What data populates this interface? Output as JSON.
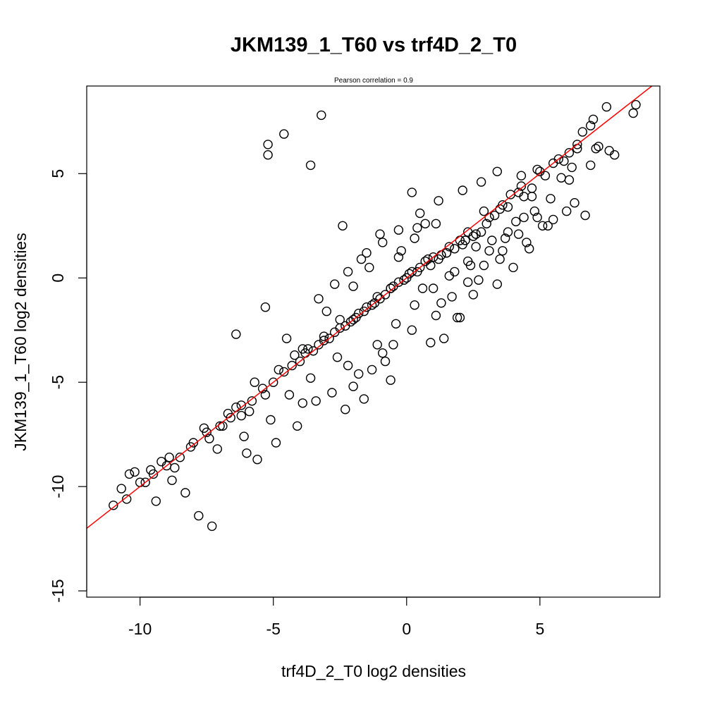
{
  "chart_data": {
    "type": "scatter",
    "title": "JKM139_1_T60 vs trf4D_2_T0",
    "subtitle": "Pearson correlation =  0.9",
    "xlabel": "trf4D_2_T0 log2 densities",
    "ylabel": "JKM139_1_T60 log2 densities",
    "xlim": [
      -12,
      9.5
    ],
    "ylim": [
      -15.3,
      9.2
    ],
    "xticks": [
      -10,
      -5,
      0,
      5
    ],
    "yticks": [
      -15,
      -10,
      -5,
      0,
      5
    ],
    "xtick_labels": [
      "-10",
      "-5",
      "0",
      "5"
    ],
    "ytick_labels": [
      "-15",
      "-10",
      "-5",
      "0",
      "5"
    ],
    "grid": false,
    "legend": "none",
    "fit_line": {
      "intercept": 0.0,
      "slope": 1.0,
      "color": "#ff0000"
    },
    "point_color": "#000000",
    "points": {
      "x": [
        8.6,
        8.5,
        7.5,
        7.8,
        7.2,
        7.1,
        6.9,
        7.0,
        6.6,
        6.4,
        6.1,
        6.2,
        5.9,
        5.8,
        5.5,
        5.2,
        4.9,
        4.7,
        4.4,
        4.2,
        4.3,
        3.9,
        3.8,
        3.5,
        3.3,
        3.1,
        3.0,
        2.8,
        2.6,
        2.5,
        2.3,
        2.1,
        2.0,
        1.8,
        1.6,
        1.5,
        1.3,
        1.2,
        1.0,
        0.9,
        0.7,
        0.5,
        0.4,
        0.2,
        0.0,
        -0.1,
        -0.3,
        -0.5,
        -0.6,
        -0.8,
        -1.0,
        -1.1,
        -1.3,
        -1.5,
        -1.6,
        -1.8,
        -2.0,
        -2.1,
        -2.3,
        -2.5,
        -2.7,
        -2.9,
        -3.1,
        -3.3,
        -3.5,
        -3.8,
        -4.0,
        -4.3,
        -4.6,
        -5.0,
        -5.4,
        -5.8,
        -6.2,
        -6.6,
        -7.0,
        -7.5,
        -8.0,
        -8.5,
        -9.0,
        -9.5,
        -10.0,
        -10.5,
        -11.0,
        -10.7,
        -10.2,
        -9.8,
        -9.2,
        -8.7,
        -8.1,
        -7.6,
        -6.9,
        -6.4,
        -5.9,
        -5.3,
        -4.8,
        -4.2,
        -3.7,
        -3.1,
        -2.5,
        -1.9,
        -1.2,
        -0.6,
        0.1,
        0.8,
        1.5,
        2.2,
        2.9,
        3.6,
        4.3,
        5.0,
        5.7,
        6.4,
        -3.2,
        -4.6,
        -5.2,
        -5.2,
        -3.6,
        -6.4,
        -5.3,
        -4.5,
        -3.9,
        -3.0,
        -2.0,
        -1.4,
        0.3,
        0.7,
        1.6,
        2.3,
        2.6,
        3.2,
        3.8,
        4.4,
        4.7,
        -2.2,
        -1.8,
        -0.9,
        -0.6,
        0.9,
        1.4,
        1.9,
        2.5,
        3.4,
        4.0,
        4.6,
        5.1,
        5.5,
        6.0,
        6.7,
        0.2,
        0.4,
        -0.3,
        -2.4,
        -1.5,
        -1.0,
        -0.2,
        1.1,
        2.7,
        -7.3,
        -7.8,
        -8.3,
        -9.4,
        -8.8,
        -7.1,
        -6.0,
        -5.6,
        -4.9,
        -4.1,
        -3.4,
        -2.8,
        -6.7,
        -6.2,
        -5.7,
        -4.4,
        -3.6,
        -2.6,
        -1.1,
        -0.4,
        0.3,
        1.0,
        1.8,
        2.4,
        3.1,
        3.7,
        4.1,
        4.8,
        5.4,
        6.1,
        6.9,
        7.6,
        -9.6,
        -10.4,
        -8.9,
        -7.4,
        -6.1,
        -5.1,
        -3.9,
        -2.3,
        -1.6,
        -0.8,
        0.6,
        1.3,
        2.0,
        3.5,
        4.5,
        5.3,
        6.3,
        -2.0,
        -1.3,
        -0.5,
        0.2,
        1.1,
        1.7,
        2.3,
        2.9,
        3.6,
        4.2,
        4.9,
        -3.3,
        -2.7,
        -2.2,
        -1.7,
        -0.9,
        -0.3,
        0.5,
        1.2,
        2.1,
        2.8,
        3.4
      ],
      "y": [
        8.3,
        7.9,
        8.2,
        5.9,
        6.3,
        6.2,
        7.3,
        7.6,
        7.0,
        6.4,
        6.0,
        5.3,
        5.6,
        4.8,
        5.5,
        4.9,
        5.2,
        4.3,
        3.9,
        4.1,
        4.9,
        4.0,
        3.4,
        3.3,
        3.0,
        2.9,
        2.6,
        2.2,
        2.1,
        2.0,
        2.2,
        1.6,
        1.8,
        1.4,
        1.5,
        1.2,
        1.1,
        0.9,
        1.0,
        0.6,
        0.8,
        0.5,
        0.3,
        0.3,
        0.0,
        -0.1,
        -0.2,
        -0.4,
        -0.5,
        -0.8,
        -1.0,
        -0.9,
        -1.3,
        -1.4,
        -1.6,
        -1.7,
        -2.0,
        -2.1,
        -2.3,
        -2.4,
        -2.6,
        -2.9,
        -3.0,
        -3.2,
        -3.5,
        -3.6,
        -4.0,
        -4.2,
        -4.5,
        -5.0,
        -5.3,
        -5.9,
        -6.1,
        -6.7,
        -7.1,
        -7.4,
        -7.9,
        -8.6,
        -9.0,
        -9.4,
        -9.8,
        -10.6,
        -10.9,
        -10.1,
        -9.3,
        -9.8,
        -8.8,
        -9.1,
        -8.1,
        -7.2,
        -7.1,
        -6.2,
        -6.4,
        -5.6,
        -4.4,
        -3.7,
        -3.4,
        -2.8,
        -2.0,
        -1.9,
        -1.2,
        -0.5,
        0.2,
        0.9,
        1.2,
        1.8,
        3.2,
        3.5,
        4.4,
        5.1,
        5.7,
        6.2,
        7.8,
        6.9,
        6.4,
        5.9,
        5.4,
        -2.7,
        -1.4,
        -2.9,
        -3.4,
        -1.6,
        -0.4,
        0.5,
        1.9,
        2.6,
        0.1,
        0.8,
        1.5,
        1.8,
        2.2,
        2.9,
        3.9,
        -4.2,
        -4.6,
        -3.6,
        -4.9,
        -3.1,
        -2.9,
        -1.9,
        -0.8,
        -0.3,
        0.5,
        1.4,
        2.5,
        2.8,
        3.2,
        3.0,
        4.1,
        2.4,
        1.0,
        2.5,
        1.2,
        2.1,
        1.3,
        2.6,
        -0.1,
        -11.9,
        -11.4,
        -10.3,
        -10.7,
        -9.7,
        -8.2,
        -8.4,
        -8.7,
        -7.9,
        -7.1,
        -5.9,
        -5.5,
        -6.5,
        -6.6,
        -5.0,
        -5.6,
        -4.8,
        -3.8,
        -3.2,
        -2.2,
        -1.3,
        -0.5,
        0.3,
        0.6,
        1.3,
        1.9,
        2.7,
        3.2,
        3.8,
        4.7,
        5.4,
        6.1,
        -9.2,
        -9.4,
        -8.6,
        -7.7,
        -7.6,
        -6.8,
        -6.0,
        -6.3,
        -5.8,
        -4.0,
        -0.5,
        -1.2,
        -1.9,
        0.9,
        1.7,
        2.5,
        3.6,
        -5.2,
        -4.4,
        -3.2,
        -2.5,
        -1.8,
        -0.9,
        -0.2,
        0.6,
        1.3,
        2.1,
        2.9,
        -1.0,
        -0.3,
        0.3,
        0.9,
        1.7,
        2.3,
        3.1,
        3.7,
        4.2,
        4.6,
        5.1
      ]
    }
  }
}
